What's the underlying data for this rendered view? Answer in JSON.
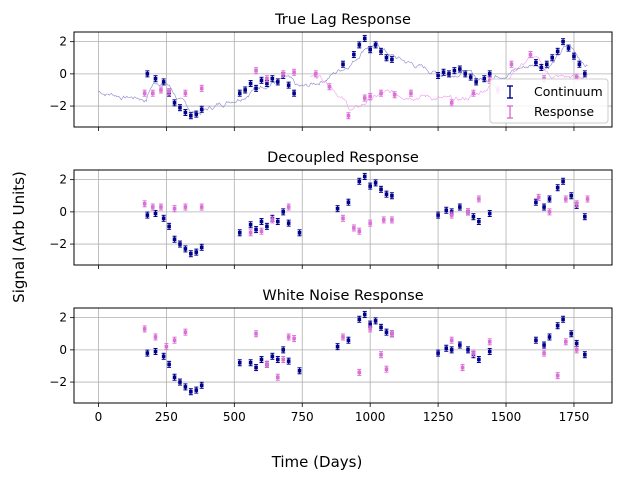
{
  "figure": {
    "xlabel": "Time (Days)",
    "ylabel": "Signal (Arb Units)"
  },
  "colors": {
    "continuum": "#00008b",
    "response": "#da70d6",
    "true_signal": "#8888cc",
    "true_response_signal": "#ee99ee",
    "grid": "#b0b0b0"
  },
  "chart_data": [
    {
      "type": "scatter",
      "title": "True Lag Response",
      "xlim": [
        -90,
        1890
      ],
      "ylim": [
        -3.3,
        2.6
      ],
      "xticks": [
        0,
        250,
        500,
        750,
        1000,
        1250,
        1500,
        1750
      ],
      "yticks": [
        -2,
        0,
        2
      ],
      "grid": true,
      "legend": {
        "position": "right",
        "entries": [
          "Continuum",
          "Response"
        ]
      },
      "series": [
        {
          "name": "Continuum",
          "points": [
            [
              180,
              0.0
            ],
            [
              210,
              -0.3
            ],
            [
              240,
              -0.5
            ],
            [
              260,
              -1.2
            ],
            [
              280,
              -1.8
            ],
            [
              300,
              -2.1
            ],
            [
              320,
              -2.4
            ],
            [
              340,
              -2.6
            ],
            [
              360,
              -2.5
            ],
            [
              380,
              -2.2
            ],
            [
              520,
              -1.2
            ],
            [
              540,
              -1.0
            ],
            [
              560,
              -0.6
            ],
            [
              580,
              -0.9
            ],
            [
              600,
              -0.4
            ],
            [
              620,
              -0.6
            ],
            [
              640,
              -0.3
            ],
            [
              660,
              -0.5
            ],
            [
              680,
              -0.1
            ],
            [
              700,
              -0.7
            ],
            [
              720,
              -1.2
            ],
            [
              900,
              0.6
            ],
            [
              940,
              1.2
            ],
            [
              960,
              1.8
            ],
            [
              980,
              2.2
            ],
            [
              1000,
              1.5
            ],
            [
              1020,
              1.8
            ],
            [
              1040,
              1.4
            ],
            [
              1060,
              1.0
            ],
            [
              1080,
              0.9
            ],
            [
              1250,
              -0.1
            ],
            [
              1270,
              0.1
            ],
            [
              1290,
              0.0
            ],
            [
              1310,
              0.2
            ],
            [
              1330,
              0.3
            ],
            [
              1350,
              0.0
            ],
            [
              1370,
              -0.2
            ],
            [
              1390,
              -0.5
            ],
            [
              1420,
              -0.3
            ],
            [
              1440,
              0.0
            ],
            [
              1610,
              0.7
            ],
            [
              1630,
              0.4
            ],
            [
              1650,
              0.6
            ],
            [
              1670,
              1.0
            ],
            [
              1690,
              1.4
            ],
            [
              1710,
              2.0
            ],
            [
              1730,
              1.6
            ],
            [
              1750,
              1.1
            ],
            [
              1770,
              0.6
            ],
            [
              1790,
              0.0
            ]
          ]
        },
        {
          "name": "Response",
          "points": [
            [
              170,
              -1.2
            ],
            [
              200,
              -1.2
            ],
            [
              230,
              -1.0
            ],
            [
              260,
              -1.1
            ],
            [
              320,
              -1.2
            ],
            [
              380,
              -0.9
            ],
            [
              580,
              0.2
            ],
            [
              620,
              -0.3
            ],
            [
              680,
              0.0
            ],
            [
              720,
              0.1
            ],
            [
              800,
              0.0
            ],
            [
              850,
              -0.8
            ],
            [
              920,
              -2.6
            ],
            [
              980,
              -1.5
            ],
            [
              1000,
              -1.4
            ],
            [
              1040,
              -1.2
            ],
            [
              1090,
              -1.3
            ],
            [
              1150,
              -1.2
            ],
            [
              1300,
              -1.8
            ],
            [
              1380,
              -1.2
            ],
            [
              1440,
              -0.4
            ],
            [
              1470,
              -1.0
            ],
            [
              1520,
              0.6
            ],
            [
              1590,
              1.2
            ],
            [
              1640,
              -0.3
            ],
            [
              1760,
              -0.2
            ]
          ]
        }
      ]
    },
    {
      "type": "scatter",
      "title": "Decoupled Response",
      "xlim": [
        -90,
        1890
      ],
      "ylim": [
        -3.3,
        2.6
      ],
      "xticks": [
        0,
        250,
        500,
        750,
        1000,
        1250,
        1500,
        1750
      ],
      "yticks": [
        -2,
        0,
        2
      ],
      "grid": true,
      "series": [
        {
          "name": "Continuum",
          "points": [
            [
              180,
              -0.2
            ],
            [
              210,
              -0.1
            ],
            [
              240,
              -0.4
            ],
            [
              260,
              -0.9
            ],
            [
              280,
              -1.7
            ],
            [
              300,
              -2.0
            ],
            [
              320,
              -2.3
            ],
            [
              340,
              -2.6
            ],
            [
              360,
              -2.5
            ],
            [
              380,
              -2.2
            ],
            [
              520,
              -1.3
            ],
            [
              560,
              -0.8
            ],
            [
              580,
              -1.1
            ],
            [
              600,
              -0.6
            ],
            [
              620,
              -0.9
            ],
            [
              640,
              -0.4
            ],
            [
              660,
              -0.6
            ],
            [
              680,
              0.0
            ],
            [
              700,
              -0.7
            ],
            [
              740,
              -1.3
            ],
            [
              880,
              0.2
            ],
            [
              920,
              0.6
            ],
            [
              960,
              1.9
            ],
            [
              980,
              2.2
            ],
            [
              1000,
              1.6
            ],
            [
              1020,
              1.8
            ],
            [
              1040,
              1.4
            ],
            [
              1060,
              1.1
            ],
            [
              1080,
              1.0
            ],
            [
              1250,
              -0.2
            ],
            [
              1280,
              0.1
            ],
            [
              1300,
              0.0
            ],
            [
              1330,
              0.3
            ],
            [
              1360,
              0.0
            ],
            [
              1380,
              -0.3
            ],
            [
              1400,
              -0.6
            ],
            [
              1440,
              -0.1
            ],
            [
              1610,
              0.6
            ],
            [
              1640,
              0.3
            ],
            [
              1660,
              0.8
            ],
            [
              1690,
              1.5
            ],
            [
              1710,
              1.9
            ],
            [
              1740,
              1.0
            ],
            [
              1760,
              0.4
            ],
            [
              1790,
              -0.3
            ]
          ]
        },
        {
          "name": "Response",
          "points": [
            [
              170,
              0.5
            ],
            [
              200,
              0.3
            ],
            [
              230,
              0.3
            ],
            [
              280,
              0.2
            ],
            [
              320,
              0.3
            ],
            [
              380,
              0.3
            ],
            [
              560,
              -1.3
            ],
            [
              600,
              -1.2
            ],
            [
              640,
              -0.5
            ],
            [
              700,
              0.3
            ],
            [
              900,
              -0.4
            ],
            [
              940,
              -1.0
            ],
            [
              960,
              -1.2
            ],
            [
              1000,
              -0.7
            ],
            [
              1050,
              -0.5
            ],
            [
              1080,
              -0.5
            ],
            [
              1300,
              -0.2
            ],
            [
              1360,
              0.0
            ],
            [
              1400,
              0.8
            ],
            [
              1620,
              0.9
            ],
            [
              1660,
              0.0
            ],
            [
              1720,
              0.8
            ],
            [
              1760,
              0.5
            ],
            [
              1800,
              0.8
            ]
          ]
        }
      ]
    },
    {
      "type": "scatter",
      "title": "White Noise Response",
      "xlim": [
        -90,
        1890
      ],
      "ylim": [
        -3.3,
        2.6
      ],
      "xticks": [
        0,
        250,
        500,
        750,
        1000,
        1250,
        1500,
        1750
      ],
      "yticks": [
        -2,
        0,
        2
      ],
      "grid": true,
      "series": [
        {
          "name": "Continuum",
          "points": [
            [
              180,
              -0.2
            ],
            [
              210,
              -0.1
            ],
            [
              240,
              -0.4
            ],
            [
              260,
              -0.9
            ],
            [
              280,
              -1.7
            ],
            [
              300,
              -2.0
            ],
            [
              320,
              -2.3
            ],
            [
              340,
              -2.6
            ],
            [
              360,
              -2.5
            ],
            [
              380,
              -2.2
            ],
            [
              520,
              -0.8
            ],
            [
              560,
              -0.8
            ],
            [
              580,
              -1.1
            ],
            [
              600,
              -0.6
            ],
            [
              620,
              -0.9
            ],
            [
              640,
              -0.4
            ],
            [
              660,
              -0.6
            ],
            [
              680,
              0.0
            ],
            [
              700,
              -0.7
            ],
            [
              740,
              -1.3
            ],
            [
              880,
              0.2
            ],
            [
              920,
              0.6
            ],
            [
              960,
              1.9
            ],
            [
              980,
              2.2
            ],
            [
              1000,
              1.6
            ],
            [
              1020,
              1.8
            ],
            [
              1040,
              1.4
            ],
            [
              1060,
              1.1
            ],
            [
              1080,
              1.0
            ],
            [
              1250,
              -0.2
            ],
            [
              1280,
              0.1
            ],
            [
              1300,
              0.0
            ],
            [
              1330,
              0.3
            ],
            [
              1360,
              0.0
            ],
            [
              1380,
              -0.3
            ],
            [
              1400,
              -0.6
            ],
            [
              1440,
              -0.1
            ],
            [
              1610,
              0.6
            ],
            [
              1640,
              0.3
            ],
            [
              1660,
              0.8
            ],
            [
              1690,
              1.5
            ],
            [
              1710,
              1.9
            ],
            [
              1740,
              1.0
            ],
            [
              1760,
              0.4
            ],
            [
              1790,
              -0.3
            ]
          ]
        },
        {
          "name": "Response",
          "points": [
            [
              170,
              1.3
            ],
            [
              210,
              0.8
            ],
            [
              250,
              0.2
            ],
            [
              280,
              0.6
            ],
            [
              320,
              1.1
            ],
            [
              580,
              1.0
            ],
            [
              620,
              -0.9
            ],
            [
              660,
              -1.7
            ],
            [
              680,
              -0.6
            ],
            [
              700,
              0.8
            ],
            [
              720,
              0.7
            ],
            [
              900,
              0.8
            ],
            [
              960,
              -1.4
            ],
            [
              1000,
              1.3
            ],
            [
              1040,
              -0.3
            ],
            [
              1060,
              -1.2
            ],
            [
              1080,
              1.0
            ],
            [
              1300,
              0.6
            ],
            [
              1340,
              -1.1
            ],
            [
              1380,
              -0.2
            ],
            [
              1440,
              0.5
            ],
            [
              1640,
              -0.2
            ],
            [
              1690,
              -1.6
            ],
            [
              1720,
              0.5
            ],
            [
              1760,
              0.0
            ]
          ]
        }
      ]
    }
  ]
}
